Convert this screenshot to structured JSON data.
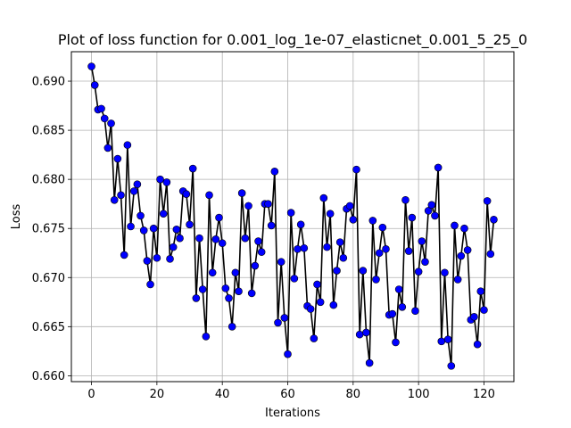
{
  "chart_data": {
    "type": "line",
    "title": "Plot of loss function for 0.001_log_1e-07_elasticnet_0.001_5_25_0",
    "xlabel": "Iterations",
    "ylabel": "Loss",
    "xlim": [
      -6.15,
      129.15
    ],
    "ylim": [
      0.6594,
      0.693
    ],
    "xticks": [
      0,
      20,
      40,
      60,
      80,
      100,
      120
    ],
    "yticks": [
      0.66,
      0.665,
      0.67,
      0.675,
      0.68,
      0.685,
      0.69
    ],
    "xtick_labels": [
      "0",
      "20",
      "40",
      "60",
      "80",
      "100",
      "120"
    ],
    "ytick_labels": [
      "0.660",
      "0.665",
      "0.670",
      "0.675",
      "0.680",
      "0.685",
      "0.690"
    ],
    "grid": true,
    "line_color": "#000000",
    "marker_color": "#0000ff",
    "series": [
      {
        "x": [
          0,
          1,
          2,
          3,
          4,
          5,
          6,
          7,
          8,
          9,
          10,
          11,
          12,
          13,
          14,
          15,
          16,
          17,
          18,
          19,
          20,
          21,
          22,
          23,
          24,
          25,
          26,
          27,
          28,
          29,
          30,
          31,
          32,
          33,
          34,
          35,
          36,
          37,
          38,
          39,
          40,
          41,
          42,
          43,
          44,
          45,
          46,
          47,
          48,
          49,
          50,
          51,
          52,
          53,
          54,
          55,
          56,
          57,
          58,
          59,
          60,
          61,
          62,
          63,
          64,
          65,
          66,
          67,
          68,
          69,
          70,
          71,
          72,
          73,
          74,
          75,
          76,
          77,
          78,
          79,
          80,
          81,
          82,
          83,
          84,
          85,
          86,
          87,
          88,
          89,
          90,
          91,
          92,
          93,
          94,
          95,
          96,
          97,
          98,
          99,
          100,
          101,
          102,
          103,
          104,
          105,
          106,
          107,
          108,
          109,
          110,
          111,
          112,
          113,
          114,
          115,
          116,
          117,
          118,
          119,
          120,
          121,
          122,
          123
        ],
        "values": [
          0.6915,
          0.6896,
          0.6871,
          0.6872,
          0.6862,
          0.6832,
          0.6857,
          0.6779,
          0.6821,
          0.6784,
          0.6723,
          0.6835,
          0.6752,
          0.6788,
          0.6795,
          0.6763,
          0.6748,
          0.6717,
          0.6693,
          0.675,
          0.672,
          0.68,
          0.6765,
          0.6797,
          0.6719,
          0.6731,
          0.6749,
          0.674,
          0.6788,
          0.6785,
          0.6754,
          0.6811,
          0.6679,
          0.674,
          0.6688,
          0.664,
          0.6784,
          0.6705,
          0.6739,
          0.6761,
          0.6735,
          0.6689,
          0.6679,
          0.665,
          0.6705,
          0.6686,
          0.6786,
          0.674,
          0.6773,
          0.6684,
          0.6712,
          0.6737,
          0.6726,
          0.6775,
          0.6775,
          0.6753,
          0.6808,
          0.6654,
          0.6716,
          0.6659,
          0.6622,
          0.6766,
          0.6699,
          0.6729,
          0.6754,
          0.673,
          0.6671,
          0.6668,
          0.6638,
          0.6693,
          0.6675,
          0.6781,
          0.6731,
          0.6765,
          0.6672,
          0.6707,
          0.6736,
          0.672,
          0.677,
          0.6773,
          0.6759,
          0.681,
          0.6642,
          0.6707,
          0.6644,
          0.6613,
          0.6758,
          0.6698,
          0.6725,
          0.6751,
          0.6729,
          0.6662,
          0.6663,
          0.6634,
          0.6688,
          0.667,
          0.6779,
          0.6727,
          0.6761,
          0.6666,
          0.6706,
          0.6737,
          0.6716,
          0.6768,
          0.6774,
          0.6763,
          0.6812,
          0.6635,
          0.6705,
          0.6637,
          0.661,
          0.6753,
          0.6698,
          0.6722,
          0.675,
          0.6728,
          0.6657,
          0.666,
          0.6632,
          0.6686,
          0.6667,
          0.6778,
          0.6724,
          0.6759
        ]
      }
    ]
  }
}
